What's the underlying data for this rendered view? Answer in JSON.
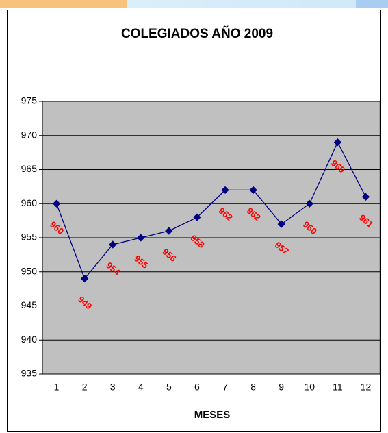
{
  "chart_data": {
    "type": "line",
    "title": "COLEGIADOS AÑO 2009",
    "x_label": "MESES",
    "categories": [
      "1",
      "2",
      "3",
      "4",
      "5",
      "6",
      "7",
      "8",
      "9",
      "10",
      "11",
      "12"
    ],
    "series": [
      {
        "color": "#000080",
        "values": [
          960,
          949,
          954,
          955,
          956,
          958,
          962,
          962,
          957,
          960,
          969,
          961
        ]
      }
    ],
    "label_color": "#ff0000",
    "ylim": [
      935,
      975
    ],
    "yticks": [
      935,
      940,
      945,
      950,
      955,
      960,
      965,
      970,
      975
    ],
    "grid": true,
    "plot_background": "#c0c0c0"
  }
}
